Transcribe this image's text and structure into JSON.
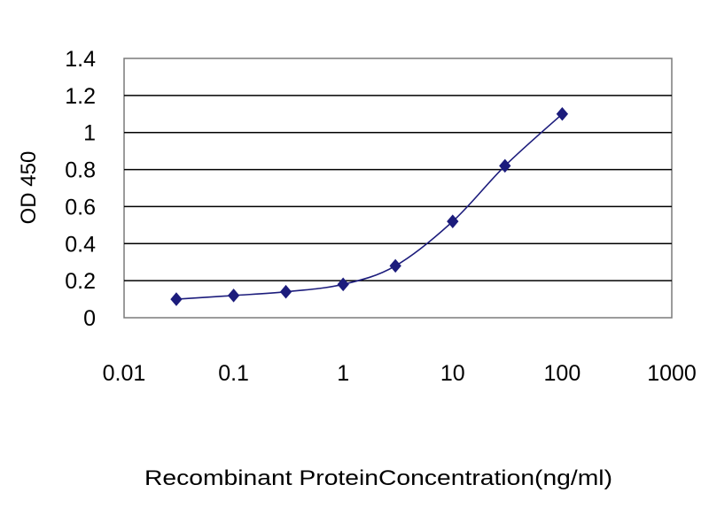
{
  "chart_data": {
    "type": "line",
    "title": "",
    "xlabel": "Recombinant ProteinConcentration(ng/ml)",
    "ylabel": "OD 450",
    "x_scale": "log",
    "xlim": [
      0.01,
      1000
    ],
    "ylim": [
      0,
      1.4
    ],
    "x_ticks": [
      0.01,
      0.1,
      1,
      10,
      100,
      1000
    ],
    "x_tick_labels": [
      "0.01",
      "0.1",
      "1",
      "10",
      "100",
      "1000"
    ],
    "y_ticks": [
      0,
      0.2,
      0.4,
      0.6,
      0.8,
      1,
      1.2,
      1.4
    ],
    "y_tick_labels": [
      "0",
      "0.2",
      "0.4",
      "0.6",
      "0.8",
      "1",
      "1.2",
      "1.4"
    ],
    "grid": true,
    "legend": false,
    "series": [
      {
        "x": [
          0.03,
          0.1,
          0.3,
          1,
          3,
          10,
          30,
          100
        ],
        "y": [
          0.1,
          0.12,
          0.14,
          0.18,
          0.28,
          0.52,
          0.82,
          1.1
        ],
        "color": "#1c1c7c",
        "marker": "diamond"
      }
    ]
  }
}
